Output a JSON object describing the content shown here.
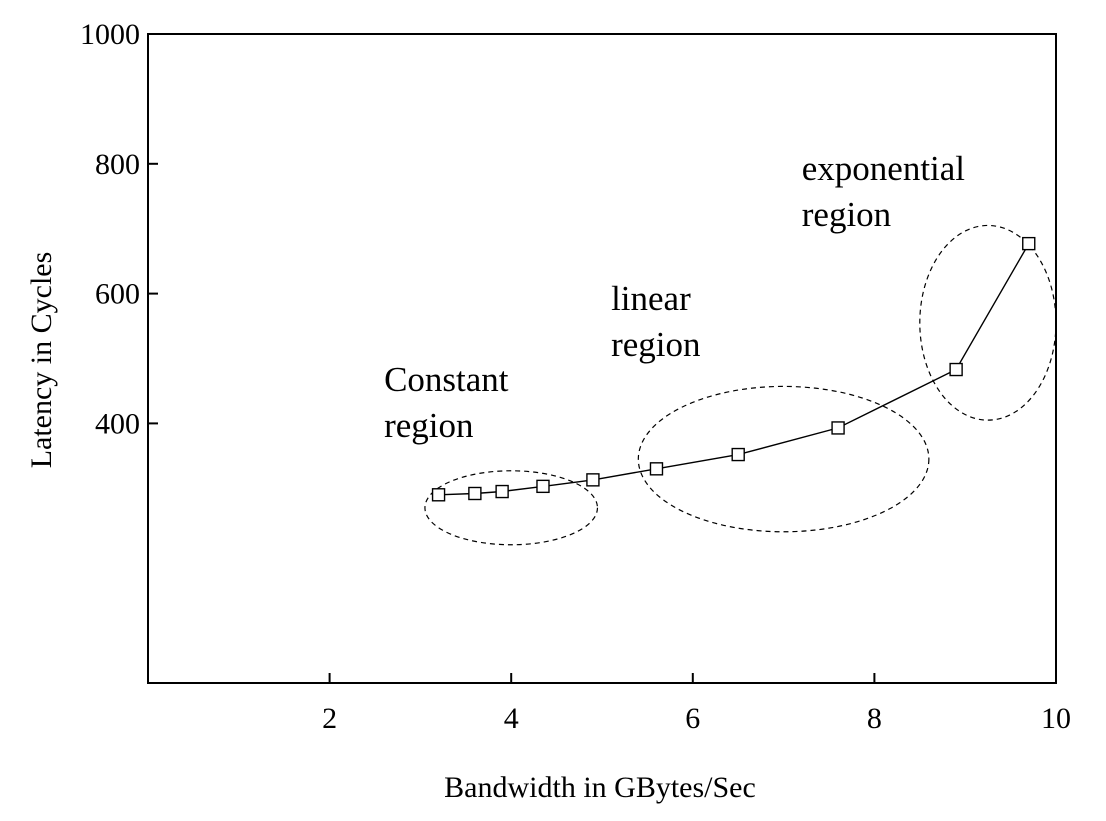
{
  "chart_data": {
    "type": "line",
    "title": "",
    "xlabel": "Bandwidth in GBytes/Sec",
    "ylabel": "Latency in Cycles",
    "xlim": [
      0,
      10
    ],
    "ylim": [
      0,
      1000
    ],
    "x_ticks": [
      2,
      4,
      6,
      8,
      10
    ],
    "y_ticks": [
      400,
      600,
      800,
      1000
    ],
    "grid": false,
    "legend": "none",
    "line_color": "#000000",
    "marker": "open-square",
    "series": [
      {
        "x": [
          3.2,
          3.6,
          3.9,
          4.35,
          4.9,
          5.6,
          6.5,
          7.6,
          8.9,
          9.7
        ],
        "y": [
          290,
          292,
          295,
          303,
          313,
          330,
          352,
          393,
          483,
          677
        ]
      }
    ],
    "annotations": [
      {
        "lines": [
          "Constant",
          "region"
        ],
        "anchor_x": 2.6,
        "anchor_y": 450,
        "ellipse": {
          "cx": 4.0,
          "cy": 270,
          "rx": 0.95,
          "ry": 57
        }
      },
      {
        "lines": [
          "linear",
          "region"
        ],
        "anchor_x": 5.1,
        "anchor_y": 575,
        "ellipse": {
          "cx": 7.0,
          "cy": 345,
          "rx": 1.6,
          "ry": 112
        }
      },
      {
        "lines": [
          "exponential",
          "region"
        ],
        "anchor_x": 7.2,
        "anchor_y": 775,
        "ellipse": {
          "cx": 9.25,
          "cy": 555,
          "rx": 0.75,
          "ry": 150
        }
      }
    ]
  }
}
